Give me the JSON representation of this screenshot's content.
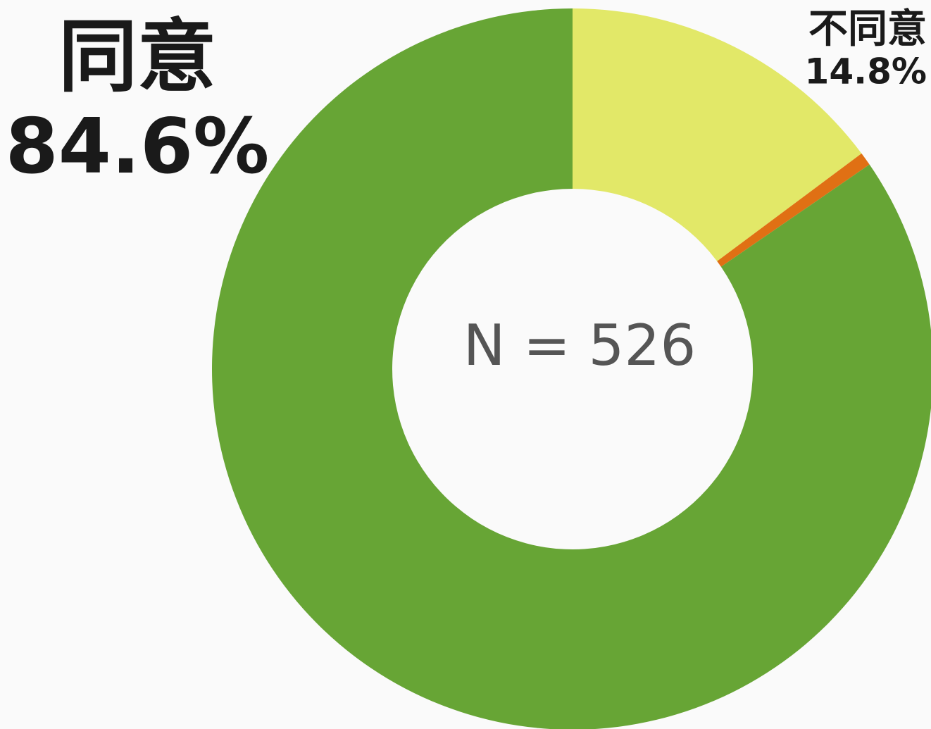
{
  "chart_data": {
    "type": "donut",
    "categories": [
      "不同意",
      null,
      "同意"
    ],
    "values": [
      14.8,
      0.6,
      84.6
    ],
    "value_labels": [
      "14.8%",
      null,
      "84.6%"
    ],
    "colors": [
      "#e2e868",
      "#e07014",
      "#67a535"
    ],
    "center_label": "N = 526"
  }
}
